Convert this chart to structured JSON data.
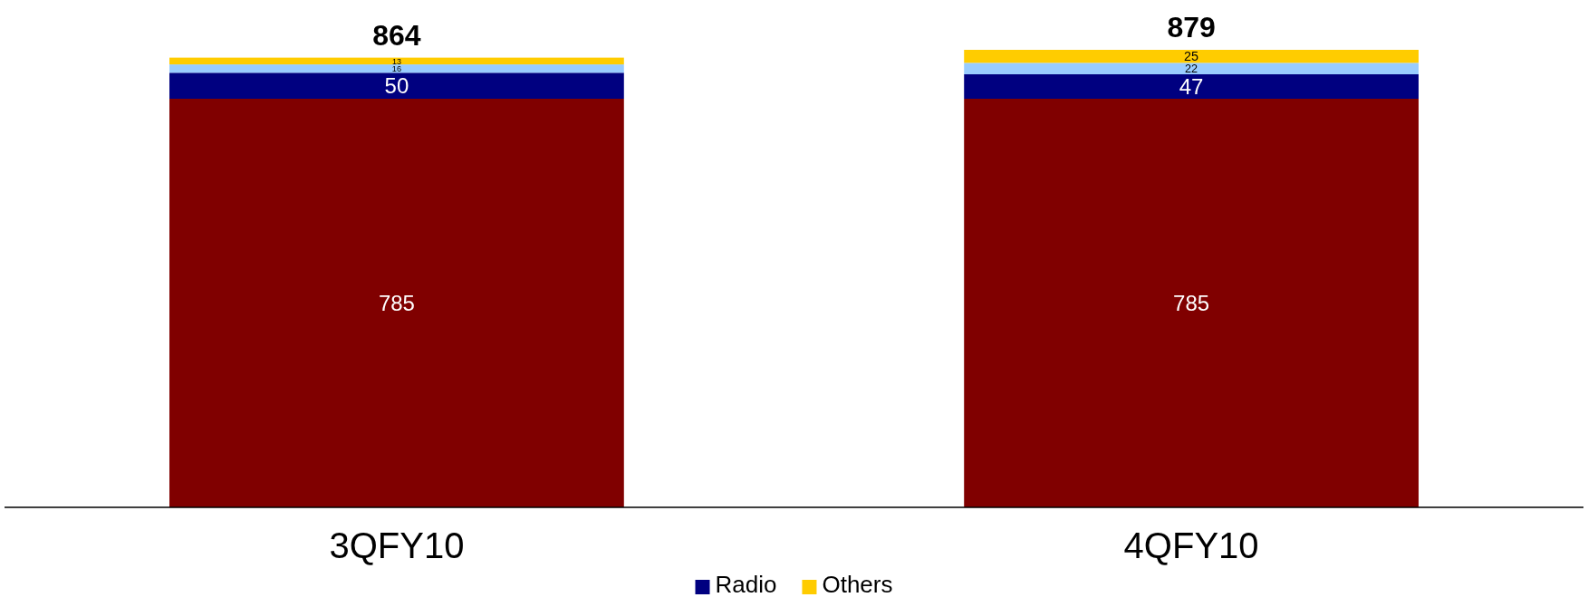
{
  "chart_data": {
    "type": "bar",
    "stacked": true,
    "categories": [
      "3QFY10",
      "4QFY10"
    ],
    "series": [
      {
        "color": "#800000",
        "values": [
          785,
          785
        ]
      },
      {
        "name": "Radio",
        "color": "#000080",
        "values": [
          50,
          47
        ]
      },
      {
        "color": "#99ccff",
        "values": [
          16,
          22
        ]
      },
      {
        "name": "Others",
        "color": "#ffcc00",
        "values": [
          13,
          25
        ]
      }
    ],
    "data_labels": true,
    "totals": [
      "864",
      "879"
    ],
    "legend": "bottom",
    "tick_labels": "x"
  }
}
